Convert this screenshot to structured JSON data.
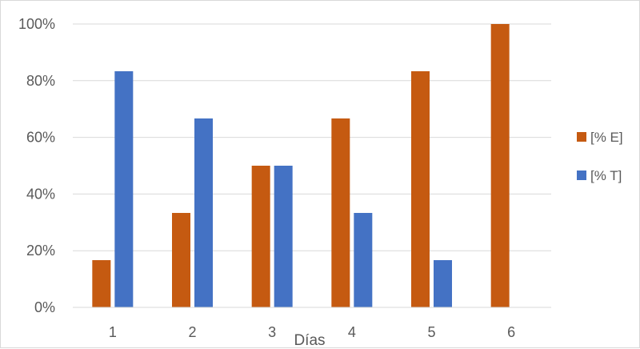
{
  "chart_data": {
    "type": "bar",
    "title": "",
    "xlabel": "Días",
    "ylabel": "",
    "categories": [
      "1",
      "2",
      "3",
      "4",
      "5",
      "6"
    ],
    "series": [
      {
        "name": "[% E]",
        "color": "#C55A11",
        "values": [
          16.67,
          33.33,
          50,
          66.67,
          83.33,
          100
        ]
      },
      {
        "name": "[% T]",
        "color": "#4472C4",
        "values": [
          83.33,
          66.67,
          50,
          33.33,
          16.67,
          0
        ]
      }
    ],
    "ylim": [
      0,
      100
    ],
    "yticks": [
      "0%",
      "20%",
      "40%",
      "60%",
      "80%",
      "100%"
    ],
    "grid": true,
    "legend_position": "right"
  }
}
